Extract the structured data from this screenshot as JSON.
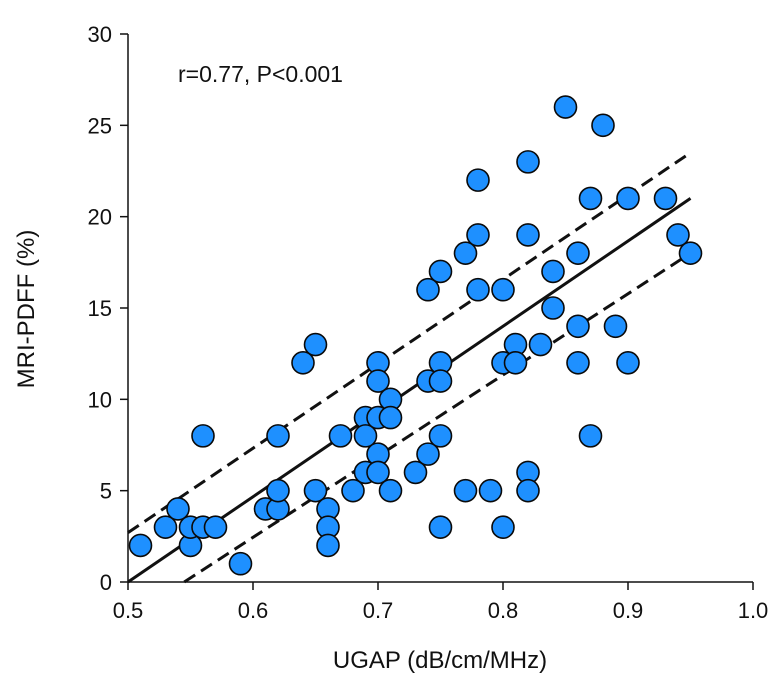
{
  "chart_data": {
    "type": "scatter",
    "title": "",
    "xlabel": "UGAP (dB/cm/MHz)",
    "ylabel": "MRI-PDFF (%)",
    "xlim": [
      0.5,
      1.0
    ],
    "ylim": [
      0,
      30
    ],
    "xticks": [
      "0.5",
      "0.6",
      "0.7",
      "0.8",
      "0.9",
      "1.0"
    ],
    "yticks": [
      "0",
      "5",
      "10",
      "15",
      "20",
      "25",
      "30"
    ],
    "annotation": "r=0.77, P<0.001",
    "marker_color": "#1E90FF",
    "marker_edge": "#0a0a0a",
    "regression": {
      "x": [
        0.5,
        0.95
      ],
      "y": [
        0.0,
        21.0
      ]
    },
    "ci_upper": {
      "x": [
        0.5,
        0.95
      ],
      "y": [
        2.7,
        23.5
      ]
    },
    "ci_lower": {
      "x": [
        0.545,
        0.95
      ],
      "y": [
        0.0,
        18.0
      ]
    },
    "points": [
      [
        0.51,
        2
      ],
      [
        0.53,
        3
      ],
      [
        0.54,
        4
      ],
      [
        0.55,
        2
      ],
      [
        0.55,
        3
      ],
      [
        0.56,
        3
      ],
      [
        0.56,
        8
      ],
      [
        0.57,
        3
      ],
      [
        0.59,
        1
      ],
      [
        0.61,
        4
      ],
      [
        0.62,
        4
      ],
      [
        0.62,
        5
      ],
      [
        0.62,
        8
      ],
      [
        0.64,
        12
      ],
      [
        0.65,
        13
      ],
      [
        0.65,
        5
      ],
      [
        0.66,
        4
      ],
      [
        0.66,
        3
      ],
      [
        0.66,
        2
      ],
      [
        0.67,
        8
      ],
      [
        0.68,
        5
      ],
      [
        0.69,
        9
      ],
      [
        0.69,
        8
      ],
      [
        0.69,
        6
      ],
      [
        0.7,
        12
      ],
      [
        0.7,
        11
      ],
      [
        0.7,
        9
      ],
      [
        0.7,
        7
      ],
      [
        0.7,
        6
      ],
      [
        0.71,
        10
      ],
      [
        0.71,
        9
      ],
      [
        0.71,
        5
      ],
      [
        0.73,
        6
      ],
      [
        0.74,
        16
      ],
      [
        0.74,
        11
      ],
      [
        0.74,
        7
      ],
      [
        0.75,
        17
      ],
      [
        0.75,
        12
      ],
      [
        0.75,
        11
      ],
      [
        0.75,
        8
      ],
      [
        0.75,
        3
      ],
      [
        0.77,
        18
      ],
      [
        0.77,
        5
      ],
      [
        0.78,
        22
      ],
      [
        0.78,
        19
      ],
      [
        0.78,
        16
      ],
      [
        0.79,
        5
      ],
      [
        0.8,
        16
      ],
      [
        0.8,
        12
      ],
      [
        0.8,
        3
      ],
      [
        0.81,
        13
      ],
      [
        0.81,
        12
      ],
      [
        0.82,
        23
      ],
      [
        0.82,
        19
      ],
      [
        0.82,
        6
      ],
      [
        0.82,
        5
      ],
      [
        0.83,
        13
      ],
      [
        0.84,
        17
      ],
      [
        0.84,
        15
      ],
      [
        0.85,
        26
      ],
      [
        0.86,
        18
      ],
      [
        0.86,
        14
      ],
      [
        0.86,
        12
      ],
      [
        0.87,
        21
      ],
      [
        0.87,
        8
      ],
      [
        0.88,
        25
      ],
      [
        0.89,
        14
      ],
      [
        0.9,
        21
      ],
      [
        0.9,
        12
      ],
      [
        0.93,
        21
      ],
      [
        0.94,
        19
      ],
      [
        0.95,
        18
      ]
    ]
  }
}
